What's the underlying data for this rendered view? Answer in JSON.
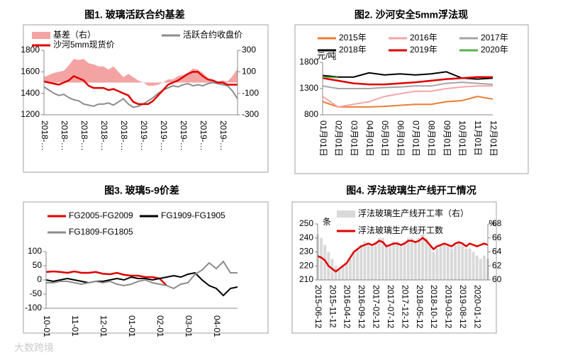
{
  "watermark": "大数跨境",
  "chart_data": [
    {
      "type": "line",
      "title": "图1. 玻璃活跃合约基差",
      "categories": [
        "2018-…",
        null,
        null,
        null,
        "2018-…",
        null,
        null,
        null,
        "2018-…",
        null,
        null,
        null,
        "2018-…",
        null,
        null,
        null,
        "2018-…",
        null,
        null,
        null,
        "2019-…",
        null,
        null,
        null,
        "2019-…",
        null,
        null,
        null,
        "2019-…",
        null,
        null,
        null,
        "2019-…",
        null,
        null,
        null,
        "2019-…",
        null,
        null,
        null
      ],
      "series": [
        {
          "name": "基差（右）",
          "type": "area",
          "axis": "y2",
          "color": "#f4a3a3",
          "values": [
            50,
            70,
            90,
            100,
            110,
            160,
            220,
            210,
            220,
            180,
            170,
            150,
            150,
            120,
            150,
            100,
            50,
            80,
            50,
            20,
            0,
            -30,
            -30,
            -20,
            0,
            30,
            30,
            60,
            70,
            90,
            130,
            120,
            90,
            40,
            20,
            10,
            20,
            10,
            60,
            130
          ]
        },
        {
          "name": "活跃合约收盘价",
          "type": "line",
          "color": "#8c8c8c",
          "values": [
            1460,
            1430,
            1400,
            1380,
            1390,
            1360,
            1340,
            1330,
            1300,
            1290,
            1280,
            1300,
            1300,
            1310,
            1290,
            1320,
            1350,
            1300,
            1270,
            1280,
            1300,
            1330,
            1360,
            1400,
            1430,
            1450,
            1470,
            1460,
            1480,
            1490,
            1470,
            1480,
            1470,
            1490,
            1500,
            1490,
            1480,
            1470,
            1420,
            1350
          ]
        },
        {
          "name": "沙河5mm现货价",
          "type": "line",
          "color": "#e00000",
          "values": [
            1510,
            1500,
            1490,
            1480,
            1500,
            1520,
            1560,
            1540,
            1520,
            1470,
            1450,
            1450,
            1450,
            1430,
            1440,
            1420,
            1400,
            1380,
            1320,
            1300,
            1300,
            1300,
            1330,
            1380,
            1430,
            1480,
            1500,
            1520,
            1550,
            1580,
            1600,
            1600,
            1560,
            1530,
            1520,
            1500,
            1500,
            1480,
            1480,
            1480
          ]
        }
      ],
      "ylim": [
        1200,
        1800
      ],
      "yticks": [
        1200,
        1400,
        1600,
        1800
      ],
      "y2lim": [
        -300,
        300
      ],
      "y2ticks": [
        -300,
        -100,
        100,
        300
      ]
    },
    {
      "type": "line",
      "title": "图2. 沙河安全5mm浮法现",
      "y_label": "元/吨",
      "categories": [
        "01月01日",
        "02月01日",
        "03月01日",
        "04月01日",
        "05月01日",
        "06月01日",
        "07月01日",
        "08月01日",
        "09月01日",
        "10月01日",
        "11月01日",
        "12月01日"
      ],
      "series": [
        {
          "name": "2015年",
          "color": "#ed7d31",
          "values": [
            1050,
            950,
            950,
            950,
            960,
            980,
            1000,
            1000,
            1050,
            1070,
            1150,
            1100
          ]
        },
        {
          "name": "2016年",
          "color": "#f4a6a6",
          "values": [
            1150,
            950,
            1000,
            1050,
            1150,
            1200,
            1250,
            1250,
            1300,
            1330,
            1350,
            1350
          ]
        },
        {
          "name": "2017年",
          "color": "#a5a5a5",
          "values": [
            1350,
            1300,
            1300,
            1300,
            1320,
            1330,
            1350,
            1350,
            1400,
            1420,
            1400,
            1380
          ]
        },
        {
          "name": "2018年",
          "color": "#000000",
          "values": [
            1550,
            1520,
            1520,
            1600,
            1560,
            1580,
            1560,
            1580,
            1620,
            1500,
            1480,
            1500
          ]
        },
        {
          "name": "2019年",
          "color": "#e00000",
          "values": [
            1500,
            1450,
            1400,
            1380,
            1380,
            1400,
            1420,
            1450,
            1480,
            1500,
            1520,
            1520
          ]
        },
        {
          "name": "2020年",
          "color": "#5ab34a",
          "values": [
            1520,
            1510,
            null,
            null,
            null,
            null,
            null,
            null,
            null,
            null,
            null,
            null
          ]
        }
      ],
      "ylim": [
        800,
        1800
      ],
      "yticks": [
        800,
        1300,
        1800
      ]
    },
    {
      "type": "line",
      "title": "图3. 玻璃5-9价差",
      "categories": [
        "10-01",
        null,
        null,
        null,
        "11-01",
        null,
        null,
        null,
        "12-01",
        null,
        null,
        null,
        "01-01",
        null,
        null,
        null,
        "02-01",
        null,
        null,
        null,
        "03-01",
        null,
        null,
        null,
        "04-01",
        null,
        null,
        null
      ],
      "series": [
        {
          "name": "FG2005-FG2009",
          "color": "#e00000",
          "values": [
            28,
            30,
            28,
            25,
            30,
            25,
            25,
            28,
            22,
            20,
            25,
            18,
            15,
            15,
            10,
            10,
            5,
            -20,
            null,
            null,
            null,
            null,
            null,
            null,
            null,
            null,
            null,
            null
          ]
        },
        {
          "name": "FG1909-FG1905",
          "color": "#000000",
          "values": [
            0,
            -5,
            0,
            5,
            0,
            -5,
            -10,
            -5,
            -5,
            0,
            5,
            0,
            10,
            5,
            5,
            0,
            5,
            10,
            15,
            10,
            20,
            25,
            0,
            -20,
            -30,
            -55,
            -30,
            -25
          ]
        },
        {
          "name": "FG1809-FG1805",
          "color": "#8c8c8c",
          "values": [
            -10,
            -10,
            -5,
            -5,
            -10,
            -15,
            -10,
            -5,
            -10,
            -5,
            -15,
            -20,
            -15,
            -5,
            0,
            -10,
            -15,
            -20,
            -30,
            -15,
            -10,
            20,
            35,
            60,
            40,
            65,
            25,
            25
          ]
        }
      ],
      "ylim": [
        -100,
        100
      ],
      "yticks": [
        -100,
        -50,
        0,
        50,
        100
      ]
    },
    {
      "type": "line",
      "title": "图4. 浮法玻璃生产线开工情况",
      "y_label": "条",
      "y2_label": "%",
      "categories": [
        "2015-06-12",
        null,
        null,
        null,
        "2015-11-12",
        null,
        null,
        null,
        "2016-04-12",
        null,
        null,
        null,
        "2016-09-12",
        null,
        null,
        null,
        "2017-02-12",
        null,
        null,
        null,
        "2017-07-12",
        null,
        null,
        null,
        "2017-12-12",
        null,
        null,
        null,
        "2018-05-12",
        null,
        null,
        null,
        "2018-10-12",
        null,
        null,
        null,
        "2019-03-12",
        null,
        null,
        null,
        "2019-08-12",
        null,
        null,
        null,
        "2020-01-12",
        null,
        null,
        null
      ],
      "series": [
        {
          "name": "浮法玻璃生产线开工率（右）",
          "type": "bar",
          "axis": "y2",
          "color": "#d9d9d9",
          "values": [
            66.5,
            66,
            65,
            64,
            63,
            62,
            61.5,
            62,
            62.5,
            63,
            64,
            64.5,
            65,
            65.5,
            65,
            65,
            65.5,
            66,
            66,
            65,
            65,
            65.5,
            65.5,
            65,
            65.5,
            66,
            66,
            65.5,
            66,
            66.5,
            66,
            65,
            64,
            64.5,
            65,
            65,
            65,
            64.5,
            65,
            65.5,
            65,
            64.5,
            64.5,
            64,
            63.5,
            63,
            63.5,
            63
          ]
        },
        {
          "name": "浮法玻璃生产线开工数",
          "type": "line",
          "color": "#e00000",
          "values": [
            227,
            226,
            224,
            220,
            218,
            216,
            218,
            220,
            222,
            226,
            230,
            232,
            234,
            235,
            236,
            235,
            236,
            238,
            237,
            234,
            235,
            236,
            236,
            235,
            236,
            238,
            238,
            237,
            238,
            240,
            238,
            235,
            232,
            234,
            235,
            236,
            235,
            234,
            236,
            237,
            236,
            234,
            236,
            235,
            234,
            235,
            236,
            235
          ]
        }
      ],
      "ylim": [
        210,
        250
      ],
      "yticks": [
        210,
        220,
        230,
        240,
        250
      ],
      "y2lim": [
        60,
        68
      ],
      "y2ticks": [
        60,
        62,
        64,
        66,
        68
      ]
    }
  ]
}
